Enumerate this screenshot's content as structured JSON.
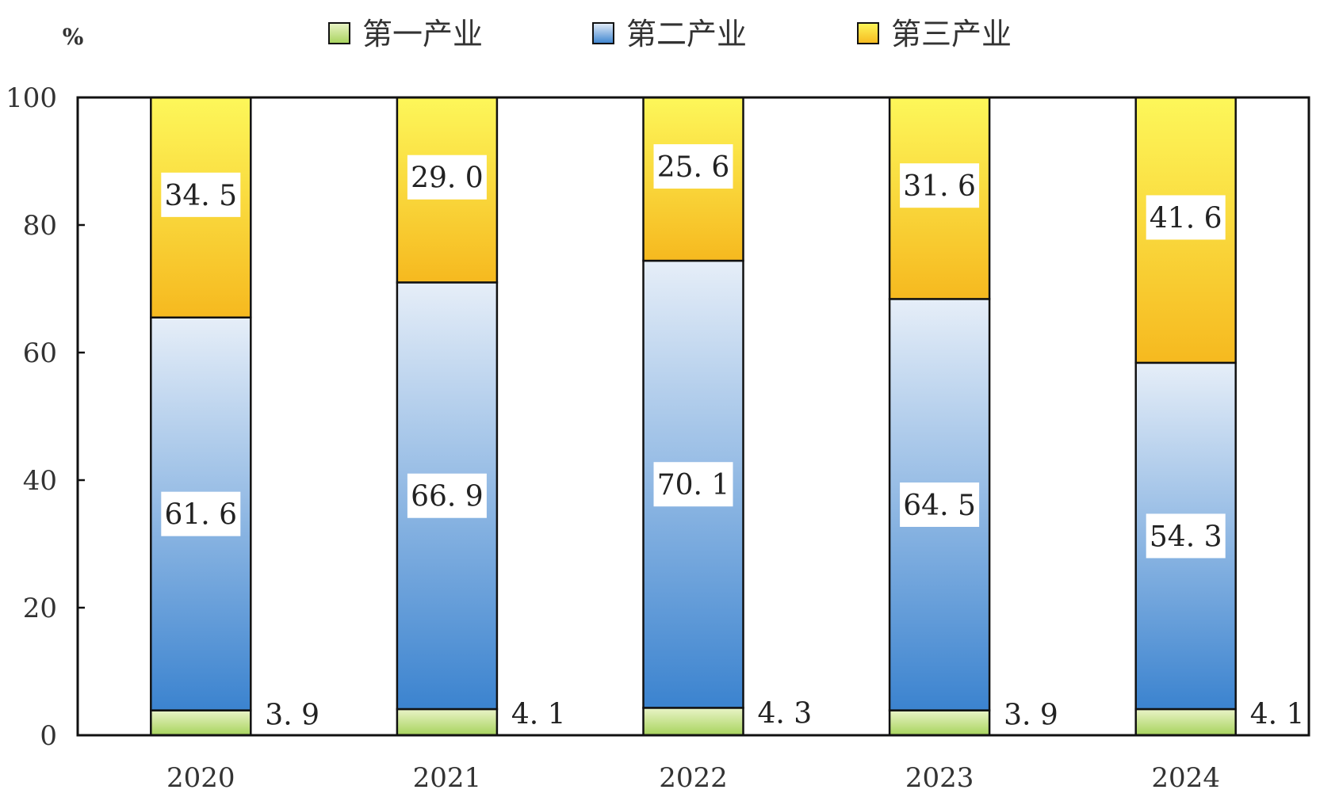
{
  "chart_data": {
    "type": "bar",
    "stacked": true,
    "unit": "%",
    "categories": [
      "2020",
      "2021",
      "2022",
      "2023",
      "2024"
    ],
    "series": [
      {
        "name": "第一产业",
        "values": [
          3.9,
          4.1,
          4.3,
          3.9,
          4.1
        ],
        "color_top": "#eaf4c8",
        "color_bottom": "#a7d35c"
      },
      {
        "name": "第二产业",
        "values": [
          61.6,
          66.9,
          70.1,
          64.5,
          54.3
        ],
        "color_top": "#e6eef8",
        "color_bottom": "#3b83cf"
      },
      {
        "name": "第三产业",
        "values": [
          34.5,
          29.0,
          25.6,
          31.6,
          41.6
        ],
        "color_top": "#fdf75a",
        "color_bottom": "#f6b91f"
      }
    ],
    "value_labels": [
      [
        "3. 9",
        "4. 1",
        "4. 3",
        "3. 9",
        "4. 1"
      ],
      [
        "61. 6",
        "66. 9",
        "70. 1",
        "64. 5",
        "54. 3"
      ],
      [
        "34. 5",
        "29. 0",
        "25. 6",
        "31. 6",
        "41. 6"
      ]
    ],
    "ylim": [
      0,
      100
    ],
    "yticks": [
      "0",
      "20",
      "40",
      "60",
      "80",
      "100"
    ],
    "grid": false,
    "legend_position": "top"
  }
}
